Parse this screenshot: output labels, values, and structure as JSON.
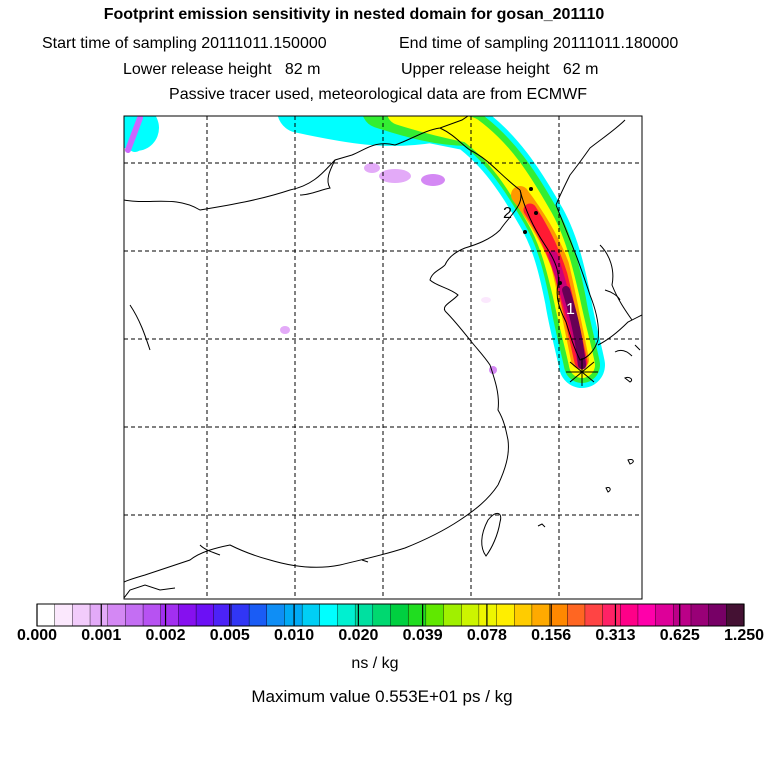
{
  "header": {
    "title": "Footprint emission sensitivity in nested domain for gosan_201110",
    "start_label": "Start time of sampling",
    "start_value": "20111011.150000",
    "end_label": "End time of sampling",
    "end_value": "20111011.180000",
    "lower_label": "Lower release height",
    "lower_value": "82 m",
    "upper_label": "Upper release height",
    "upper_value": "62 m",
    "note": "Passive tracer used, meteorological data are from ECMWF"
  },
  "map": {
    "trajectory_labels": [
      "2",
      "1"
    ],
    "colors": {
      "plume_outer": "#00ffff",
      "plume_green": "#33ee33",
      "plume_yellow": "#ffff00",
      "plume_orange": "#ff9900",
      "plume_red": "#ff1a33",
      "plume_magenta": "#cc0077",
      "plume_purple": "#660055",
      "light_violet": "#cc66ff",
      "coast": "#000000"
    }
  },
  "colorbar": {
    "colors": [
      "#ffffff",
      "#fbe8fd",
      "#f2ccfb",
      "#e3aaf8",
      "#d488f4",
      "#c46ef3",
      "#b752f2",
      "#a22ff0",
      "#8610ef",
      "#6c10f5",
      "#4c22f7",
      "#3136f5",
      "#1a5cf5",
      "#0f8ef5",
      "#00aaf5",
      "#00cff5",
      "#00ffff",
      "#00f0d0",
      "#00e0a0",
      "#00d870",
      "#00d040",
      "#20dd20",
      "#60e800",
      "#a0f000",
      "#ccf500",
      "#eef500",
      "#ffee00",
      "#ffcc00",
      "#ffaa00",
      "#ff8800",
      "#ff6622",
      "#ff4444",
      "#ff2266",
      "#ff0088",
      "#ff00aa",
      "#dd0099",
      "#bb0088",
      "#990077",
      "#770066",
      "#441133"
    ],
    "tick_labels": [
      "0.000",
      "0.001",
      "0.002",
      "0.005",
      "0.010",
      "0.020",
      "0.039",
      "0.078",
      "0.156",
      "0.313",
      "0.625",
      "1.250"
    ],
    "units": "ns / kg",
    "max_value_text": "Maximum value  0.553E+01 ps / kg"
  }
}
